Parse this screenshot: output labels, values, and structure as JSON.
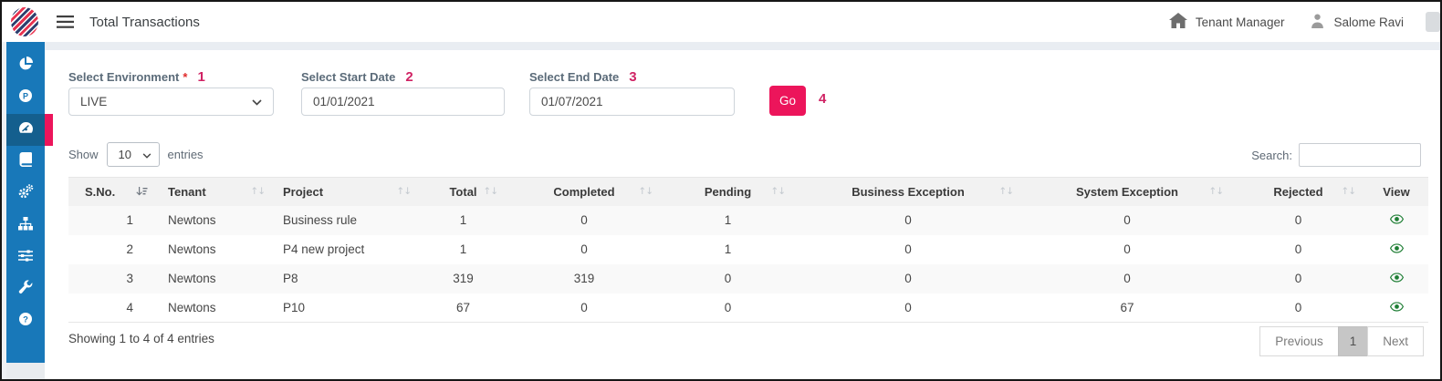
{
  "topbar": {
    "title": "Total Transactions",
    "tenant_manager_label": "Tenant Manager",
    "user_name": "Salome Ravi"
  },
  "sidebar": {
    "icons": [
      "pie-chart",
      "p-badge",
      "dashboard",
      "book",
      "cogs",
      "sitemap",
      "sliders",
      "wrench",
      "help"
    ],
    "active_icon": "dashboard"
  },
  "filters": {
    "environment_label": "Select Environment",
    "environment_required_mark": "*",
    "environment_value": "LIVE",
    "start_date_label": "Select Start Date",
    "start_date_value": "01/01/2021",
    "end_date_label": "Select End Date",
    "end_date_value": "01/07/2021",
    "go_label": "Go",
    "annotations": {
      "environment": "1",
      "start_date": "2",
      "end_date": "3",
      "go": "4"
    }
  },
  "list_controls": {
    "show_label": "Show",
    "page_size_value": "10",
    "entries_label": "entries",
    "search_label": "Search:",
    "search_value": ""
  },
  "table": {
    "columns": [
      "S.No.",
      "Tenant",
      "Project",
      "Total",
      "Completed",
      "Pending",
      "Business Exception",
      "System Exception",
      "Rejected",
      "View"
    ],
    "rows": [
      [
        "1",
        "Newtons",
        "Business rule",
        "1",
        "0",
        "1",
        "0",
        "0",
        "0"
      ],
      [
        "2",
        "Newtons",
        "P4 new project",
        "1",
        "0",
        "1",
        "0",
        "0",
        "0"
      ],
      [
        "3",
        "Newtons",
        "P8",
        "319",
        "319",
        "0",
        "0",
        "0",
        "0"
      ],
      [
        "4",
        "Newtons",
        "P10",
        "67",
        "0",
        "0",
        "0",
        "67",
        "0"
      ]
    ]
  },
  "pagination": {
    "summary": "Showing 1 to 4 of 4 entries",
    "previous_label": "Previous",
    "current_page": "1",
    "next_label": "Next"
  },
  "colors": {
    "sidebar_blue": "#1878b9",
    "sidebar_active_blue": "#145f8e",
    "accent_pink": "#ec155b",
    "annotation_crimson": "#d02364",
    "eye_green": "#1e7e34",
    "header_band": "#f2f2f2"
  }
}
